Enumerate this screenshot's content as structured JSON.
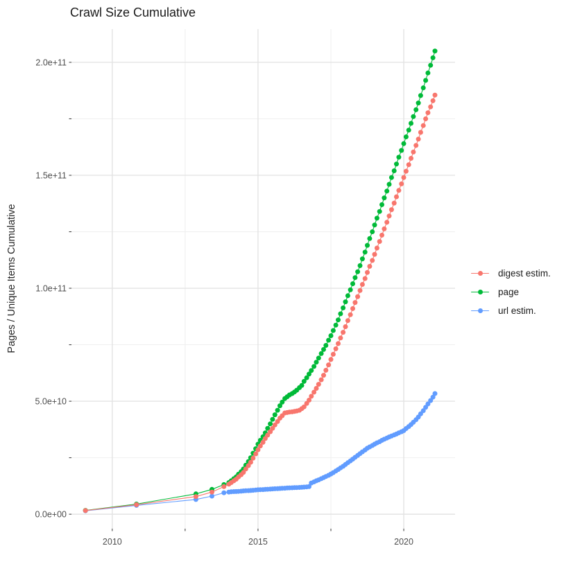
{
  "title": "Crawl Size Cumulative",
  "colors": {
    "background": "#ffffff",
    "grid_major": "#e3e3e3",
    "grid_minor": "#efefef",
    "tick_mark": "#333333",
    "tick_label": "#4d4d4d",
    "text": "#1a1a1a",
    "digest_estim": "#f8766d",
    "page": "#00ba38",
    "url_estim": "#619cff"
  },
  "chart_data": {
    "type": "line",
    "marker": "circle",
    "title": "Crawl Size Cumulative",
    "xlabel": "",
    "ylabel": "Pages / Unique Items Cumulative",
    "legend_position": "right",
    "grid": true,
    "xlim": [
      2008.6,
      2021.76
    ],
    "ylim_e9": [
      -6.4,
      214.7
    ],
    "y_value_scale": "y values are billions of pages/items (1e9)",
    "x_ticks": {
      "values": [
        2010,
        2015,
        2020
      ],
      "labels": [
        "2010",
        "2015",
        "2020"
      ]
    },
    "x_minor": [
      2012.5,
      2017.5
    ],
    "y_ticks": {
      "values_e9": [
        0,
        50,
        100,
        150,
        200
      ],
      "labels": [
        "0.0e+00",
        "5.0e+10",
        "1.0e+11",
        "1.5e+11",
        "2.0e+11"
      ]
    },
    "y_minor_e9": [
      25,
      75,
      125,
      175
    ],
    "series": [
      {
        "name": "digest estim.",
        "color": "#f8766d",
        "points": [
          [
            2009.08,
            1.6
          ],
          [
            2010.83,
            4.2
          ],
          [
            2012.87,
            7.8
          ],
          [
            2013.42,
            9.8
          ],
          [
            2013.83,
            12.2
          ],
          [
            2014.0,
            13.3
          ],
          [
            2014.08,
            14.0
          ],
          [
            2014.17,
            14.8
          ],
          [
            2014.25,
            15.5
          ],
          [
            2014.33,
            16.5
          ],
          [
            2014.42,
            17.5
          ],
          [
            2014.5,
            18.5
          ],
          [
            2014.58,
            20.0
          ],
          [
            2014.67,
            21.5
          ],
          [
            2014.75,
            23.0
          ],
          [
            2014.83,
            24.8
          ],
          [
            2014.92,
            26.7
          ],
          [
            2015.0,
            28.5
          ],
          [
            2015.08,
            30.2
          ],
          [
            2015.17,
            31.8
          ],
          [
            2015.25,
            33.5
          ],
          [
            2015.33,
            35.0
          ],
          [
            2015.42,
            36.5
          ],
          [
            2015.5,
            38.0
          ],
          [
            2015.58,
            39.5
          ],
          [
            2015.67,
            41.0
          ],
          [
            2015.75,
            42.5
          ],
          [
            2015.83,
            43.6
          ],
          [
            2015.92,
            44.8
          ],
          [
            2016.0,
            45.0
          ],
          [
            2016.08,
            45.2
          ],
          [
            2016.17,
            45.3
          ],
          [
            2016.25,
            45.5
          ],
          [
            2016.33,
            45.7
          ],
          [
            2016.42,
            46.0
          ],
          [
            2016.5,
            46.7
          ],
          [
            2016.58,
            47.5
          ],
          [
            2016.67,
            49.0
          ],
          [
            2016.75,
            50.5
          ],
          [
            2016.83,
            52.2
          ],
          [
            2016.92,
            54.0
          ],
          [
            2017.0,
            55.7
          ],
          [
            2017.08,
            57.5
          ],
          [
            2017.17,
            59.5
          ],
          [
            2017.25,
            61.5
          ],
          [
            2017.33,
            63.7
          ],
          [
            2017.42,
            66.1
          ],
          [
            2017.5,
            68.5
          ],
          [
            2017.58,
            70.8
          ],
          [
            2017.67,
            73.2
          ],
          [
            2017.75,
            75.5
          ],
          [
            2017.83,
            78.0
          ],
          [
            2017.92,
            80.5
          ],
          [
            2018.0,
            83.0
          ],
          [
            2018.08,
            85.7
          ],
          [
            2018.17,
            88.3
          ],
          [
            2018.25,
            91.0
          ],
          [
            2018.33,
            93.7
          ],
          [
            2018.42,
            96.3
          ],
          [
            2018.5,
            99.0
          ],
          [
            2018.58,
            101.7
          ],
          [
            2018.67,
            104.3
          ],
          [
            2018.75,
            107.0
          ],
          [
            2018.83,
            109.7
          ],
          [
            2018.92,
            112.3
          ],
          [
            2019.0,
            115.0
          ],
          [
            2019.08,
            117.8
          ],
          [
            2019.17,
            120.7
          ],
          [
            2019.25,
            123.5
          ],
          [
            2019.33,
            126.3
          ],
          [
            2019.42,
            129.2
          ],
          [
            2019.5,
            132.0
          ],
          [
            2019.58,
            134.8
          ],
          [
            2019.67,
            137.7
          ],
          [
            2019.75,
            140.5
          ],
          [
            2019.83,
            143.3
          ],
          [
            2019.92,
            146.2
          ],
          [
            2020.0,
            149.0
          ],
          [
            2020.08,
            151.8
          ],
          [
            2020.17,
            154.7
          ],
          [
            2020.25,
            157.5
          ],
          [
            2020.33,
            160.3
          ],
          [
            2020.42,
            163.2
          ],
          [
            2020.5,
            166.0
          ],
          [
            2020.58,
            169.0
          ],
          [
            2020.67,
            172.0
          ],
          [
            2020.75,
            175.0
          ],
          [
            2020.83,
            177.7
          ],
          [
            2020.92,
            180.3
          ],
          [
            2021.0,
            183.0
          ],
          [
            2021.07,
            185.5
          ]
        ]
      },
      {
        "name": "page",
        "color": "#00ba38",
        "points": [
          [
            2009.08,
            1.7
          ],
          [
            2010.83,
            4.5
          ],
          [
            2012.87,
            9.0
          ],
          [
            2013.42,
            11.0
          ],
          [
            2013.83,
            13.1
          ],
          [
            2014.0,
            14.0
          ],
          [
            2014.08,
            14.8
          ],
          [
            2014.17,
            15.7
          ],
          [
            2014.25,
            16.5
          ],
          [
            2014.33,
            17.7
          ],
          [
            2014.42,
            18.8
          ],
          [
            2014.5,
            20.0
          ],
          [
            2014.58,
            21.7
          ],
          [
            2014.67,
            23.3
          ],
          [
            2014.75,
            25.0
          ],
          [
            2014.83,
            27.0
          ],
          [
            2014.92,
            29.0
          ],
          [
            2015.0,
            31.0
          ],
          [
            2015.08,
            32.7
          ],
          [
            2015.17,
            34.3
          ],
          [
            2015.25,
            36.0
          ],
          [
            2015.33,
            38.0
          ],
          [
            2015.42,
            40.0
          ],
          [
            2015.5,
            42.0
          ],
          [
            2015.58,
            44.0
          ],
          [
            2015.67,
            46.0
          ],
          [
            2015.75,
            48.0
          ],
          [
            2015.83,
            49.6
          ],
          [
            2015.92,
            51.2
          ],
          [
            2016.0,
            52.0
          ],
          [
            2016.08,
            52.8
          ],
          [
            2016.17,
            53.4
          ],
          [
            2016.25,
            54.1
          ],
          [
            2016.33,
            54.9
          ],
          [
            2016.42,
            56.0
          ],
          [
            2016.5,
            57.0
          ],
          [
            2016.58,
            58.8
          ],
          [
            2016.67,
            60.4
          ],
          [
            2016.75,
            62.0
          ],
          [
            2016.83,
            63.6
          ],
          [
            2016.92,
            65.4
          ],
          [
            2017.0,
            67.3
          ],
          [
            2017.08,
            69.1
          ],
          [
            2017.17,
            71.1
          ],
          [
            2017.25,
            72.9
          ],
          [
            2017.33,
            74.7
          ],
          [
            2017.42,
            77.0
          ],
          [
            2017.5,
            79.0
          ],
          [
            2017.58,
            81.3
          ],
          [
            2017.67,
            83.7
          ],
          [
            2017.75,
            86.0
          ],
          [
            2017.83,
            88.7
          ],
          [
            2017.92,
            91.3
          ],
          [
            2018.0,
            94.0
          ],
          [
            2018.08,
            96.7
          ],
          [
            2018.17,
            99.3
          ],
          [
            2018.25,
            102.0
          ],
          [
            2018.33,
            104.7
          ],
          [
            2018.42,
            107.3
          ],
          [
            2018.5,
            110.0
          ],
          [
            2018.58,
            113.0
          ],
          [
            2018.67,
            116.0
          ],
          [
            2018.75,
            119.0
          ],
          [
            2018.83,
            122.0
          ],
          [
            2018.92,
            125.0
          ],
          [
            2019.0,
            128.0
          ],
          [
            2019.08,
            131.0
          ],
          [
            2019.17,
            134.0
          ],
          [
            2019.25,
            137.0
          ],
          [
            2019.33,
            140.0
          ],
          [
            2019.42,
            143.0
          ],
          [
            2019.5,
            146.0
          ],
          [
            2019.58,
            149.0
          ],
          [
            2019.67,
            152.0
          ],
          [
            2019.75,
            155.0
          ],
          [
            2019.83,
            158.0
          ],
          [
            2019.92,
            161.0
          ],
          [
            2020.0,
            164.0
          ],
          [
            2020.08,
            167.0
          ],
          [
            2020.17,
            170.0
          ],
          [
            2020.25,
            173.0
          ],
          [
            2020.33,
            176.0
          ],
          [
            2020.42,
            179.0
          ],
          [
            2020.5,
            182.0
          ],
          [
            2020.58,
            185.3
          ],
          [
            2020.67,
            188.7
          ],
          [
            2020.75,
            192.0
          ],
          [
            2020.83,
            195.3
          ],
          [
            2020.92,
            198.7
          ],
          [
            2021.0,
            202.0
          ],
          [
            2021.07,
            205.0
          ]
        ]
      },
      {
        "name": "url estim.",
        "color": "#619cff",
        "points": [
          [
            2009.08,
            1.5
          ],
          [
            2010.83,
            3.9
          ],
          [
            2012.87,
            6.5
          ],
          [
            2013.42,
            8.0
          ],
          [
            2013.83,
            9.5
          ],
          [
            2014.0,
            9.8
          ],
          [
            2014.08,
            9.9
          ],
          [
            2014.17,
            10.0
          ],
          [
            2014.25,
            10.05
          ],
          [
            2014.33,
            10.1
          ],
          [
            2014.42,
            10.2
          ],
          [
            2014.5,
            10.3
          ],
          [
            2014.58,
            10.4
          ],
          [
            2014.67,
            10.45
          ],
          [
            2014.75,
            10.5
          ],
          [
            2014.83,
            10.6
          ],
          [
            2014.92,
            10.7
          ],
          [
            2015.0,
            10.8
          ],
          [
            2015.08,
            10.85
          ],
          [
            2015.17,
            10.9
          ],
          [
            2015.25,
            11.0
          ],
          [
            2015.33,
            11.05
          ],
          [
            2015.42,
            11.1
          ],
          [
            2015.5,
            11.2
          ],
          [
            2015.58,
            11.25
          ],
          [
            2015.67,
            11.3
          ],
          [
            2015.75,
            11.4
          ],
          [
            2015.83,
            11.45
          ],
          [
            2015.92,
            11.5
          ],
          [
            2016.0,
            11.6
          ],
          [
            2016.08,
            11.65
          ],
          [
            2016.17,
            11.7
          ],
          [
            2016.25,
            11.75
          ],
          [
            2016.33,
            11.8
          ],
          [
            2016.42,
            11.85
          ],
          [
            2016.5,
            11.9
          ],
          [
            2016.58,
            12.0
          ],
          [
            2016.67,
            12.1
          ],
          [
            2016.75,
            12.2
          ],
          [
            2016.83,
            13.8
          ],
          [
            2016.92,
            14.3
          ],
          [
            2017.0,
            14.8
          ],
          [
            2017.08,
            15.2
          ],
          [
            2017.17,
            15.7
          ],
          [
            2017.25,
            16.2
          ],
          [
            2017.33,
            16.7
          ],
          [
            2017.42,
            17.2
          ],
          [
            2017.5,
            17.8
          ],
          [
            2017.58,
            18.4
          ],
          [
            2017.67,
            19.1
          ],
          [
            2017.75,
            19.8
          ],
          [
            2017.83,
            20.5
          ],
          [
            2017.92,
            21.2
          ],
          [
            2018.0,
            22.0
          ],
          [
            2018.08,
            22.8
          ],
          [
            2018.17,
            23.6
          ],
          [
            2018.25,
            24.4
          ],
          [
            2018.33,
            25.2
          ],
          [
            2018.42,
            26.0
          ],
          [
            2018.5,
            26.8
          ],
          [
            2018.58,
            27.6
          ],
          [
            2018.67,
            28.4
          ],
          [
            2018.75,
            29.2
          ],
          [
            2018.83,
            29.8
          ],
          [
            2018.92,
            30.4
          ],
          [
            2019.0,
            31.0
          ],
          [
            2019.08,
            31.6
          ],
          [
            2019.17,
            32.1
          ],
          [
            2019.25,
            32.7
          ],
          [
            2019.33,
            33.2
          ],
          [
            2019.42,
            33.7
          ],
          [
            2019.5,
            34.2
          ],
          [
            2019.58,
            34.6
          ],
          [
            2019.67,
            35.1
          ],
          [
            2019.75,
            35.5
          ],
          [
            2019.83,
            36.0
          ],
          [
            2019.92,
            36.5
          ],
          [
            2020.0,
            37.0
          ],
          [
            2020.08,
            37.9
          ],
          [
            2020.17,
            38.8
          ],
          [
            2020.25,
            39.7
          ],
          [
            2020.33,
            40.7
          ],
          [
            2020.42,
            41.8
          ],
          [
            2020.5,
            43.0
          ],
          [
            2020.58,
            44.4
          ],
          [
            2020.67,
            45.8
          ],
          [
            2020.75,
            47.3
          ],
          [
            2020.83,
            48.8
          ],
          [
            2020.92,
            50.3
          ],
          [
            2021.0,
            51.8
          ],
          [
            2021.07,
            53.4
          ]
        ]
      }
    ]
  }
}
